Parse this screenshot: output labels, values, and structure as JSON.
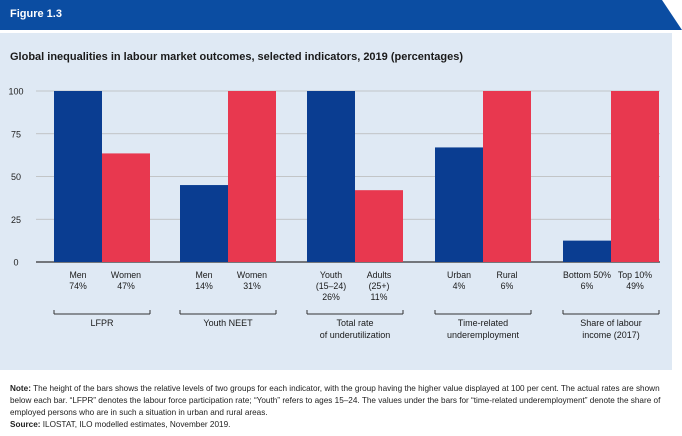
{
  "figure_label": "Figure 1.3",
  "colors": {
    "banner": "#0b4da2",
    "panel": "#dfe9f4",
    "series_a": "#0a3d91",
    "series_b": "#e8384f"
  },
  "chart_data": {
    "type": "bar",
    "title": "Global inequalities in labour market outcomes, selected indicators, 2019 (percentages)",
    "ylim": [
      0,
      100
    ],
    "yticks": [
      0,
      25,
      50,
      75,
      100
    ],
    "grid": true,
    "groups": [
      {
        "name": "LFPR",
        "name_lines": [
          "LFPR"
        ],
        "bars": [
          {
            "label_lines": [
              "Men"
            ],
            "rate": "74%",
            "value": 100,
            "series": "a"
          },
          {
            "label_lines": [
              "Women"
            ],
            "rate": "47%",
            "value": 63.5,
            "series": "b"
          }
        ]
      },
      {
        "name": "Youth NEET",
        "name_lines": [
          "Youth NEET"
        ],
        "bars": [
          {
            "label_lines": [
              "Men"
            ],
            "rate": "14%",
            "value": 45,
            "series": "a"
          },
          {
            "label_lines": [
              "Women"
            ],
            "rate": "31%",
            "value": 100,
            "series": "b"
          }
        ]
      },
      {
        "name": "Total rate of underutilization",
        "name_lines": [
          "Total rate",
          "of underutilization"
        ],
        "bars": [
          {
            "label_lines": [
              "Youth",
              "(15–24)"
            ],
            "rate": "26%",
            "value": 100,
            "series": "a"
          },
          {
            "label_lines": [
              "Adults",
              "(25+)"
            ],
            "rate": "11%",
            "value": 42,
            "series": "b"
          }
        ]
      },
      {
        "name": "Time-related underemployment",
        "name_lines": [
          "Time-related",
          "underemployment"
        ],
        "bars": [
          {
            "label_lines": [
              "Urban"
            ],
            "rate": "4%",
            "value": 67,
            "series": "a"
          },
          {
            "label_lines": [
              "Rural"
            ],
            "rate": "6%",
            "value": 100,
            "series": "b"
          }
        ]
      },
      {
        "name": "Share of labour income (2017)",
        "name_lines": [
          "Share of labour",
          "income (2017)"
        ],
        "bars": [
          {
            "label_lines": [
              "Bottom 50%"
            ],
            "rate": "6%",
            "value": 12.5,
            "series": "a"
          },
          {
            "label_lines": [
              "Top 10%"
            ],
            "rate": "49%",
            "value": 100,
            "series": "b"
          }
        ]
      }
    ]
  },
  "note": {
    "label": "Note:",
    "text": "The height of the bars shows the relative levels of two groups for each indicator, with the group having the higher value displayed at 100 per cent. The actual rates are shown below each bar. “LFPR” denotes the labour force participation rate; “Youth” refers to ages 15–24. The values under the bars for “time-related underemployment” denote the share of employed persons who are in such a situation in urban and rural areas."
  },
  "source": {
    "label": "Source:",
    "text": "ILOSTAT, ILO modelled estimates, November 2019."
  }
}
